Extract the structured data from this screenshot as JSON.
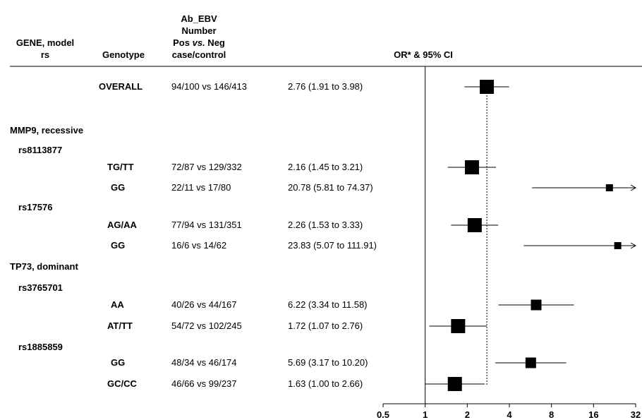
{
  "header": {
    "gene_model": "GENE, model",
    "rs": "rs",
    "genotype": "Genotype",
    "ab_line1": "Ab_EBV",
    "ab_line2": "Number",
    "ab_line3_pre": "Pos ",
    "ab_line3_vs": "vs.",
    "ab_line3_post": " Neg",
    "ab_line4": "case/control",
    "or_label": "OR* & 95% CI"
  },
  "chart_data": {
    "type": "forest",
    "title": "",
    "xlabel": "OR* & 95% CI",
    "xscale": "log2",
    "xlim": [
      0.5,
      32
    ],
    "ticks": [
      "0.5",
      "1",
      "2",
      "4",
      "8",
      "16",
      "32"
    ],
    "tick_values": [
      0.5,
      1,
      2,
      4,
      8,
      16,
      32
    ],
    "reference_line": 1,
    "overall_line": 2.76,
    "rows": [
      {
        "kind": "item",
        "genotype": "OVERALL",
        "counts": "94/100 vs 146/413",
        "ci_text": "2.76 (1.91 to 3.98)",
        "or": 2.76,
        "lo": 1.91,
        "hi": 3.98,
        "marker": "large"
      },
      {
        "kind": "group",
        "label": "MMP9, recessive"
      },
      {
        "kind": "snp",
        "label": "rs8113877"
      },
      {
        "kind": "item",
        "genotype": "TG/TT",
        "counts": "72/87 vs 129/332",
        "ci_text": "2.16 (1.45 to 3.21)",
        "or": 2.16,
        "lo": 1.45,
        "hi": 3.21,
        "marker": "large"
      },
      {
        "kind": "item",
        "genotype": "GG",
        "counts": "22/11 vs 17/80",
        "ci_text": "20.78 (5.81 to 74.37)",
        "or": 20.78,
        "lo": 5.81,
        "hi": 74.37,
        "marker": "small",
        "arrow": true
      },
      {
        "kind": "snp",
        "label": "rs17576"
      },
      {
        "kind": "item",
        "genotype": "AG/AA",
        "counts": "77/94 vs 131/351",
        "ci_text": "2.26 (1.53 to 3.33)",
        "or": 2.26,
        "lo": 1.53,
        "hi": 3.33,
        "marker": "large"
      },
      {
        "kind": "item",
        "genotype": "GG",
        "counts": "16/6 vs 14/62",
        "ci_text": "23.83 (5.07 to 111.91)",
        "or": 23.83,
        "lo": 5.07,
        "hi": 111.91,
        "marker": "small",
        "arrow": true
      },
      {
        "kind": "group",
        "label": "TP73, dominant"
      },
      {
        "kind": "snp",
        "label": "rs3765701"
      },
      {
        "kind": "item",
        "genotype": "AA",
        "counts": "40/26 vs 44/167",
        "ci_text": "6.22 (3.34 to 11.58)",
        "or": 6.22,
        "lo": 3.34,
        "hi": 11.58,
        "marker": "medium"
      },
      {
        "kind": "item",
        "genotype": "AT/TT",
        "counts": "54/72 vs 102/245",
        "ci_text": "1.72 (1.07 to 2.76)",
        "or": 1.72,
        "lo": 1.07,
        "hi": 2.76,
        "marker": "large"
      },
      {
        "kind": "snp",
        "label": "rs1885859"
      },
      {
        "kind": "item",
        "genotype": "GG",
        "counts": "48/34 vs 46/174",
        "ci_text": "5.69 (3.17 to 10.20)",
        "or": 5.69,
        "lo": 3.17,
        "hi": 10.2,
        "marker": "medium"
      },
      {
        "kind": "item",
        "genotype": "GC/CC",
        "counts": "46/66 vs 99/237",
        "ci_text": "1.63 (1.00 to 2.66)",
        "or": 1.63,
        "lo": 1.0,
        "hi": 2.66,
        "marker": "large"
      }
    ]
  }
}
